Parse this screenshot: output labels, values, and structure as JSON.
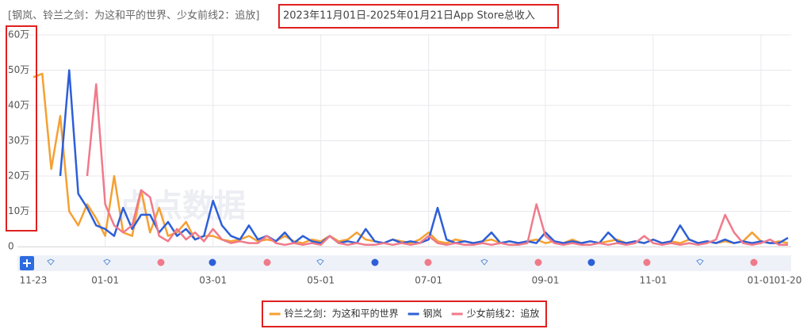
{
  "chart_data": {
    "type": "line",
    "title": "[钢岚、铃兰之剑：为这和平的世界、少女前线2：追放]",
    "subtitle": "2023年11月01日-2025年01月21日App Store总收入",
    "watermark": "点点数据",
    "categories": [
      "11-23",
      null,
      null,
      null,
      null,
      null,
      null,
      null,
      "01-01",
      null,
      null,
      null,
      null,
      null,
      null,
      null,
      null,
      null,
      null,
      null,
      "03-01",
      null,
      null,
      null,
      null,
      null,
      null,
      null,
      null,
      null,
      null,
      null,
      "05-01",
      null,
      null,
      null,
      null,
      null,
      null,
      null,
      null,
      null,
      null,
      null,
      "07-01",
      null,
      null,
      null,
      null,
      null,
      null,
      null,
      null,
      null,
      null,
      null,
      null,
      "09-01",
      null,
      null,
      null,
      null,
      null,
      null,
      null,
      null,
      null,
      null,
      null,
      "11-01",
      null,
      null,
      null,
      null,
      null,
      null,
      null,
      null,
      null,
      null,
      null,
      "01-01",
      null,
      null,
      "01-20"
    ],
    "ylim": [
      0,
      600000
    ],
    "yticks": [
      0,
      {
        "value": 100000,
        "label": "10万"
      },
      {
        "value": 200000,
        "label": "20万"
      },
      {
        "value": 300000,
        "label": "30万"
      },
      {
        "value": 400000,
        "label": "40万"
      },
      {
        "value": 500000,
        "label": "50万"
      },
      {
        "value": 600000,
        "label": "60万"
      }
    ],
    "grid": true,
    "legend": "bottom",
    "series": [
      {
        "name": "铃兰之剑：为这和平的世界",
        "color": "#f5a032",
        "values": [
          480000,
          490000,
          220000,
          370000,
          100000,
          60000,
          120000,
          80000,
          30000,
          200000,
          40000,
          30000,
          160000,
          40000,
          110000,
          30000,
          40000,
          70000,
          20000,
          30000,
          30000,
          20000,
          15000,
          20000,
          30000,
          15000,
          20000,
          15000,
          30000,
          15000,
          10000,
          20000,
          15000,
          30000,
          15000,
          20000,
          40000,
          20000,
          15000,
          10000,
          20000,
          15000,
          10000,
          20000,
          40000,
          15000,
          10000,
          20000,
          15000,
          10000,
          15000,
          20000,
          10000,
          15000,
          10000,
          15000,
          20000,
          10000,
          15000,
          10000,
          20000,
          10000,
          15000,
          10000,
          15000,
          20000,
          10000,
          15000,
          10000,
          20000,
          10000,
          15000,
          10000,
          20000,
          10000,
          15000,
          10000,
          15000,
          10000,
          15000,
          40000,
          15000,
          10000,
          15000,
          10000
        ]
      },
      {
        "name": "钢岚",
        "color": "#2d5fd8",
        "values": [
          null,
          null,
          null,
          200000,
          500000,
          150000,
          110000,
          60000,
          50000,
          30000,
          110000,
          50000,
          90000,
          90000,
          40000,
          70000,
          30000,
          50000,
          20000,
          30000,
          130000,
          60000,
          30000,
          20000,
          60000,
          20000,
          30000,
          15000,
          40000,
          10000,
          30000,
          15000,
          10000,
          30000,
          10000,
          15000,
          10000,
          50000,
          15000,
          10000,
          20000,
          10000,
          15000,
          10000,
          20000,
          110000,
          20000,
          10000,
          15000,
          10000,
          15000,
          40000,
          10000,
          15000,
          10000,
          15000,
          10000,
          40000,
          15000,
          10000,
          15000,
          10000,
          15000,
          10000,
          40000,
          15000,
          10000,
          15000,
          10000,
          20000,
          10000,
          15000,
          60000,
          20000,
          10000,
          15000,
          10000,
          20000,
          10000,
          15000,
          10000,
          15000,
          10000,
          10000,
          25000
        ]
      },
      {
        "name": "少女前线2：追放",
        "color": "#f07a8a",
        "values": [
          null,
          null,
          null,
          null,
          null,
          null,
          200000,
          460000,
          120000,
          60000,
          40000,
          60000,
          160000,
          140000,
          30000,
          15000,
          50000,
          20000,
          40000,
          15000,
          50000,
          20000,
          10000,
          15000,
          10000,
          10000,
          30000,
          10000,
          5000,
          10000,
          5000,
          10000,
          5000,
          30000,
          10000,
          5000,
          10000,
          5000,
          5000,
          10000,
          5000,
          10000,
          5000,
          10000,
          30000,
          10000,
          5000,
          10000,
          5000,
          5000,
          10000,
          5000,
          10000,
          5000,
          5000,
          10000,
          120000,
          30000,
          10000,
          5000,
          10000,
          5000,
          5000,
          10000,
          5000,
          10000,
          5000,
          10000,
          30000,
          10000,
          5000,
          10000,
          5000,
          10000,
          5000,
          10000,
          20000,
          90000,
          40000,
          10000,
          5000,
          10000,
          20000,
          5000,
          5000
        ]
      }
    ]
  }
}
